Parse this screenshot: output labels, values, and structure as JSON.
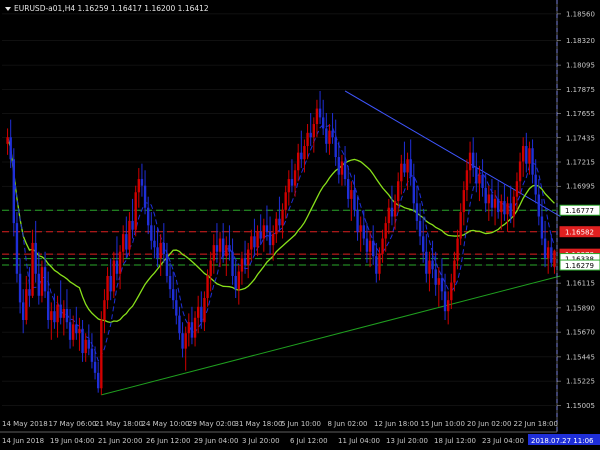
{
  "header": {
    "symbol_line": "EURUSD-a01,H4  1.16259 1.16417 1.16200 1.16412"
  },
  "chart_data": {
    "type": "candlestick",
    "title": "EURUSD-a01,H4",
    "ohlc_last": {
      "open": 1.16259,
      "high": 1.16417,
      "low": 1.162,
      "close": 1.16412
    },
    "ylim": [
      1.1489,
      1.1865
    ],
    "price_ticks": [
      "1.18560",
      "1.18320",
      "1.18095",
      "1.17875",
      "1.17655",
      "1.17435",
      "1.17215",
      "1.16995",
      "1.16777",
      "1.16582",
      "1.16378",
      "1.16338",
      "1.16279",
      "1.16115",
      "1.15890",
      "1.15670",
      "1.15445",
      "1.15225",
      "1.15005"
    ],
    "bottom_time_labels": [
      "14 Jun 2018",
      "19 Jun 04:00",
      "21 Jun 20:00",
      "26 Jun 12:00",
      "29 Jun 04:00",
      "3 Jul 20:00",
      "6 Jul 12:00",
      "11 Jul 04:00",
      "13 Jul 20:00",
      "18 Jul 12:00",
      "23 Jul 04:00",
      "2018.07.27 11:06"
    ],
    "top_time_labels": [
      "14 May 2018",
      "17 May 06:00",
      "21 May 18:00",
      "24 May 10:00",
      "29 May 02:00",
      "31 May 18:00",
      "5 Jun 10:00",
      "8 Jun 02:00",
      "12 Jun 18:00",
      "15 Jun 10:00",
      "20 Jun 02:00",
      "22 Jun 18:00"
    ],
    "levels": [
      {
        "label": "1.16777",
        "value": 1.16777,
        "color": "#2aa82a",
        "style": "dashed"
      },
      {
        "label": "1.16582",
        "value": 1.16582,
        "color": "#e02020",
        "style": "dashed"
      },
      {
        "label": "1.16378",
        "value": 1.16378,
        "color": "#e02020",
        "style": "dashed"
      },
      {
        "label": "1.16338",
        "value": 1.16338,
        "color": "#2aa82a",
        "style": "dashed"
      },
      {
        "label": "1.16279",
        "value": 1.16279,
        "color": "#2aa82a",
        "style": "dashed"
      }
    ],
    "trendlines": [
      {
        "name": "resistance",
        "color": "#3f56ff",
        "from": {
          "i": 108,
          "v": 1.1786
        },
        "to": {
          "i": 190,
          "v": 1.1672
        }
      },
      {
        "name": "support",
        "color": "#1f9f1f",
        "from": {
          "i": 30,
          "v": 1.151
        },
        "to": {
          "i": 190,
          "v": 1.1618
        }
      }
    ],
    "colors": {
      "bull": "#d10000",
      "bear": "#1f2fd8",
      "ma_fast": "#1f2fd8",
      "ma_slow": "#88e01a",
      "grid": "#202020",
      "vline": "#3a4cff"
    },
    "candles": [
      [
        1.1738,
        1.1752,
        1.1728,
        1.1744
      ],
      [
        1.1744,
        1.176,
        1.1716,
        1.1724
      ],
      [
        1.1724,
        1.1734,
        1.1654,
        1.1666
      ],
      [
        1.1666,
        1.1676,
        1.1612,
        1.162
      ],
      [
        1.162,
        1.1634,
        1.1584,
        1.1594
      ],
      [
        1.1594,
        1.1606,
        1.1566,
        1.1578
      ],
      [
        1.1578,
        1.1618,
        1.1574,
        1.1606
      ],
      [
        1.1606,
        1.1626,
        1.159,
        1.16
      ],
      [
        1.16,
        1.166,
        1.1598,
        1.1648
      ],
      [
        1.1648,
        1.1668,
        1.1612,
        1.162
      ],
      [
        1.162,
        1.164,
        1.1592,
        1.16
      ],
      [
        1.16,
        1.1632,
        1.1594,
        1.1626
      ],
      [
        1.1626,
        1.164,
        1.1598,
        1.1604
      ],
      [
        1.1604,
        1.1622,
        1.157,
        1.1578
      ],
      [
        1.1578,
        1.1594,
        1.156,
        1.1586
      ],
      [
        1.1586,
        1.1602,
        1.157,
        1.1576
      ],
      [
        1.1576,
        1.16,
        1.1562,
        1.1592
      ],
      [
        1.1592,
        1.1614,
        1.1574,
        1.158
      ],
      [
        1.158,
        1.1596,
        1.1564,
        1.1588
      ],
      [
        1.1588,
        1.1606,
        1.157,
        1.1576
      ],
      [
        1.1576,
        1.1588,
        1.1552,
        1.156
      ],
      [
        1.156,
        1.1582,
        1.1554,
        1.1574
      ],
      [
        1.1574,
        1.159,
        1.156,
        1.1566
      ],
      [
        1.1566,
        1.158,
        1.155,
        1.157
      ],
      [
        1.157,
        1.1578,
        1.154,
        1.1548
      ],
      [
        1.1548,
        1.1566,
        1.154,
        1.156
      ],
      [
        1.156,
        1.1574,
        1.1546,
        1.1552
      ],
      [
        1.1552,
        1.1566,
        1.1534,
        1.154
      ],
      [
        1.154,
        1.1554,
        1.1524,
        1.153
      ],
      [
        1.153,
        1.154,
        1.1512,
        1.1516
      ],
      [
        1.1516,
        1.1586,
        1.151,
        1.1578
      ],
      [
        1.1578,
        1.1606,
        1.1566,
        1.1596
      ],
      [
        1.1596,
        1.1626,
        1.1588,
        1.1618
      ],
      [
        1.1618,
        1.1634,
        1.1596,
        1.1604
      ],
      [
        1.1604,
        1.164,
        1.1598,
        1.1632
      ],
      [
        1.1632,
        1.1654,
        1.1614,
        1.162
      ],
      [
        1.162,
        1.1646,
        1.1606,
        1.164
      ],
      [
        1.164,
        1.1664,
        1.163,
        1.1656
      ],
      [
        1.1656,
        1.1672,
        1.1634,
        1.1642
      ],
      [
        1.1642,
        1.1676,
        1.1636,
        1.1668
      ],
      [
        1.1668,
        1.1688,
        1.1652,
        1.166
      ],
      [
        1.166,
        1.17,
        1.1654,
        1.1694
      ],
      [
        1.1694,
        1.1716,
        1.168,
        1.1706
      ],
      [
        1.1706,
        1.172,
        1.169,
        1.17
      ],
      [
        1.17,
        1.1714,
        1.1674,
        1.168
      ],
      [
        1.168,
        1.169,
        1.1656,
        1.1664
      ],
      [
        1.1664,
        1.1676,
        1.1642,
        1.165
      ],
      [
        1.165,
        1.1664,
        1.1634,
        1.1644
      ],
      [
        1.1644,
        1.1662,
        1.1626,
        1.1634
      ],
      [
        1.1634,
        1.1656,
        1.1618,
        1.1648
      ],
      [
        1.1648,
        1.1666,
        1.163,
        1.1638
      ],
      [
        1.1638,
        1.1648,
        1.1612,
        1.1618
      ],
      [
        1.1618,
        1.163,
        1.1598,
        1.1606
      ],
      [
        1.1606,
        1.1622,
        1.1588,
        1.1596
      ],
      [
        1.1596,
        1.1606,
        1.1574,
        1.1582
      ],
      [
        1.1582,
        1.159,
        1.156,
        1.1566
      ],
      [
        1.1566,
        1.1576,
        1.1544,
        1.1552
      ],
      [
        1.1552,
        1.1572,
        1.1532,
        1.1566
      ],
      [
        1.1566,
        1.1584,
        1.1554,
        1.1576
      ],
      [
        1.1576,
        1.159,
        1.1556,
        1.1562
      ],
      [
        1.1562,
        1.1586,
        1.1554,
        1.158
      ],
      [
        1.158,
        1.16,
        1.1566,
        1.159
      ],
      [
        1.159,
        1.1604,
        1.157,
        1.1576
      ],
      [
        1.1576,
        1.1604,
        1.1568,
        1.1598
      ],
      [
        1.1598,
        1.1624,
        1.159,
        1.1618
      ],
      [
        1.1618,
        1.164,
        1.1604,
        1.1632
      ],
      [
        1.1632,
        1.1656,
        1.162,
        1.1646
      ],
      [
        1.1646,
        1.1666,
        1.163,
        1.164
      ],
      [
        1.164,
        1.1658,
        1.1626,
        1.1652
      ],
      [
        1.1652,
        1.1666,
        1.163,
        1.1636
      ],
      [
        1.1636,
        1.1654,
        1.1618,
        1.1646
      ],
      [
        1.1646,
        1.1664,
        1.1632,
        1.164
      ],
      [
        1.164,
        1.1652,
        1.161,
        1.1618
      ],
      [
        1.1618,
        1.1632,
        1.1598,
        1.1606
      ],
      [
        1.1606,
        1.1628,
        1.1592,
        1.1622
      ],
      [
        1.1622,
        1.164,
        1.161,
        1.1634
      ],
      [
        1.1634,
        1.165,
        1.162,
        1.1628
      ],
      [
        1.1628,
        1.1648,
        1.1616,
        1.1642
      ],
      [
        1.1642,
        1.166,
        1.1632,
        1.1654
      ],
      [
        1.1654,
        1.167,
        1.1636,
        1.1644
      ],
      [
        1.1644,
        1.1664,
        1.1636,
        1.1658
      ],
      [
        1.1658,
        1.1674,
        1.1646,
        1.1652
      ],
      [
        1.1652,
        1.167,
        1.164,
        1.1664
      ],
      [
        1.1664,
        1.1682,
        1.165,
        1.1658
      ],
      [
        1.1658,
        1.1672,
        1.1638,
        1.1646
      ],
      [
        1.1646,
        1.1664,
        1.1632,
        1.1656
      ],
      [
        1.1656,
        1.1676,
        1.1648,
        1.167
      ],
      [
        1.167,
        1.169,
        1.1658,
        1.1664
      ],
      [
        1.1664,
        1.1684,
        1.1652,
        1.1678
      ],
      [
        1.1678,
        1.17,
        1.167,
        1.1694
      ],
      [
        1.1694,
        1.1714,
        1.1682,
        1.1706
      ],
      [
        1.1706,
        1.1724,
        1.1694,
        1.17
      ],
      [
        1.17,
        1.172,
        1.169,
        1.1714
      ],
      [
        1.1714,
        1.1738,
        1.1704,
        1.173
      ],
      [
        1.173,
        1.175,
        1.1716,
        1.1724
      ],
      [
        1.1724,
        1.1742,
        1.1712,
        1.1736
      ],
      [
        1.1736,
        1.1756,
        1.1724,
        1.1748
      ],
      [
        1.1748,
        1.1766,
        1.1736,
        1.1744
      ],
      [
        1.1744,
        1.1762,
        1.173,
        1.1756
      ],
      [
        1.1756,
        1.1778,
        1.1744,
        1.177
      ],
      [
        1.177,
        1.1786,
        1.1756,
        1.1762
      ],
      [
        1.1762,
        1.1778,
        1.1746,
        1.1752
      ],
      [
        1.1752,
        1.1766,
        1.173,
        1.1738
      ],
      [
        1.1738,
        1.1756,
        1.1728,
        1.175
      ],
      [
        1.175,
        1.1766,
        1.1738,
        1.1744
      ],
      [
        1.1744,
        1.176,
        1.1718,
        1.1726
      ],
      [
        1.1726,
        1.174,
        1.1702,
        1.171
      ],
      [
        1.171,
        1.1728,
        1.17,
        1.1722
      ],
      [
        1.1722,
        1.1736,
        1.17,
        1.1706
      ],
      [
        1.1706,
        1.1718,
        1.168,
        1.1688
      ],
      [
        1.1688,
        1.1704,
        1.1668,
        1.1696
      ],
      [
        1.1696,
        1.171,
        1.1672,
        1.1678
      ],
      [
        1.1678,
        1.169,
        1.165,
        1.1658
      ],
      [
        1.1658,
        1.1672,
        1.164,
        1.1664
      ],
      [
        1.1664,
        1.1678,
        1.1646,
        1.1652
      ],
      [
        1.1652,
        1.1666,
        1.163,
        1.164
      ],
      [
        1.164,
        1.1658,
        1.1626,
        1.165
      ],
      [
        1.165,
        1.1664,
        1.1628,
        1.1636
      ],
      [
        1.1636,
        1.1648,
        1.1612,
        1.162
      ],
      [
        1.162,
        1.1644,
        1.1614,
        1.1638
      ],
      [
        1.1638,
        1.166,
        1.163,
        1.1652
      ],
      [
        1.1652,
        1.1672,
        1.164,
        1.1666
      ],
      [
        1.1666,
        1.1688,
        1.1656,
        1.168
      ],
      [
        1.168,
        1.17,
        1.1664,
        1.1672
      ],
      [
        1.1672,
        1.1692,
        1.166,
        1.1686
      ],
      [
        1.1686,
        1.1712,
        1.1676,
        1.1704
      ],
      [
        1.1704,
        1.1728,
        1.1692,
        1.172
      ],
      [
        1.172,
        1.174,
        1.1708,
        1.1712
      ],
      [
        1.1712,
        1.173,
        1.1696,
        1.1724
      ],
      [
        1.1724,
        1.1742,
        1.17,
        1.1708
      ],
      [
        1.1708,
        1.172,
        1.1676,
        1.1684
      ],
      [
        1.1684,
        1.17,
        1.166,
        1.1668
      ],
      [
        1.1668,
        1.1684,
        1.1646,
        1.1654
      ],
      [
        1.1654,
        1.1672,
        1.163,
        1.164
      ],
      [
        1.164,
        1.1656,
        1.1612,
        1.162
      ],
      [
        1.162,
        1.164,
        1.1604,
        1.1632
      ],
      [
        1.1632,
        1.165,
        1.1616,
        1.1624
      ],
      [
        1.1624,
        1.164,
        1.16,
        1.161
      ],
      [
        1.161,
        1.1626,
        1.159,
        1.1616
      ],
      [
        1.1616,
        1.1634,
        1.1596,
        1.1604
      ],
      [
        1.1604,
        1.162,
        1.1578,
        1.1586
      ],
      [
        1.1586,
        1.1604,
        1.1574,
        1.1596
      ],
      [
        1.1596,
        1.162,
        1.1588,
        1.1612
      ],
      [
        1.1612,
        1.164,
        1.1604,
        1.1632
      ],
      [
        1.1632,
        1.166,
        1.1624,
        1.1652
      ],
      [
        1.1652,
        1.1684,
        1.1646,
        1.1676
      ],
      [
        1.1676,
        1.1704,
        1.1664,
        1.1696
      ],
      [
        1.1696,
        1.1724,
        1.1686,
        1.1714
      ],
      [
        1.1714,
        1.174,
        1.1702,
        1.173
      ],
      [
        1.173,
        1.1744,
        1.1708,
        1.1716
      ],
      [
        1.1716,
        1.173,
        1.1694,
        1.1702
      ],
      [
        1.1702,
        1.1718,
        1.1686,
        1.171
      ],
      [
        1.171,
        1.1724,
        1.169,
        1.1698
      ],
      [
        1.1698,
        1.1712,
        1.1676,
        1.1684
      ],
      [
        1.1684,
        1.17,
        1.1668,
        1.1692
      ],
      [
        1.1692,
        1.1706,
        1.1672,
        1.168
      ],
      [
        1.168,
        1.1696,
        1.1664,
        1.1688
      ],
      [
        1.1688,
        1.1704,
        1.167,
        1.1676
      ],
      [
        1.1676,
        1.1692,
        1.166,
        1.1686
      ],
      [
        1.1686,
        1.1702,
        1.1668,
        1.1674
      ],
      [
        1.1674,
        1.169,
        1.1658,
        1.1684
      ],
      [
        1.1684,
        1.17,
        1.1666,
        1.1672
      ],
      [
        1.1672,
        1.1696,
        1.1662,
        1.169
      ],
      [
        1.169,
        1.1712,
        1.1678,
        1.1704
      ],
      [
        1.1704,
        1.173,
        1.1692,
        1.1722
      ],
      [
        1.1722,
        1.1744,
        1.1708,
        1.1736
      ],
      [
        1.1736,
        1.1748,
        1.1712,
        1.172
      ],
      [
        1.172,
        1.174,
        1.171,
        1.1734
      ],
      [
        1.1734,
        1.1742,
        1.1702,
        1.171
      ],
      [
        1.171,
        1.1724,
        1.1684,
        1.1692
      ],
      [
        1.1692,
        1.1706,
        1.1664,
        1.1672
      ],
      [
        1.1672,
        1.1688,
        1.1646,
        1.1652
      ],
      [
        1.1652,
        1.1668,
        1.1626,
        1.1634
      ],
      [
        1.1634,
        1.165,
        1.162,
        1.1644
      ],
      [
        1.1644,
        1.1656,
        1.1626,
        1.163
      ],
      [
        1.1626,
        1.1642,
        1.162,
        1.1641
      ]
    ]
  }
}
